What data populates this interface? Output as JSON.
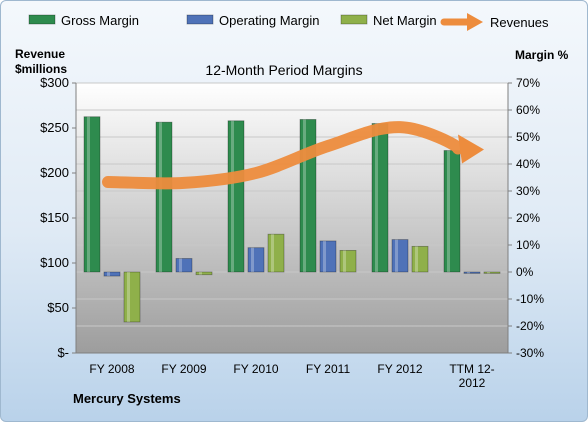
{
  "chart_data": {
    "type": "bar",
    "title": "12-Month Period Margins",
    "left_axis_title": [
      "Revenue",
      "$millions"
    ],
    "right_axis_title": "Margin %",
    "footer": "Mercury Systems",
    "categories": [
      "FY 2008",
      "FY 2009",
      "FY 2010",
      "FY 2011",
      "FY 2012",
      "TTM 12-2012"
    ],
    "category_labels": [
      [
        "FY 2008"
      ],
      [
        "FY 2009"
      ],
      [
        "FY 2010"
      ],
      [
        "FY 2011"
      ],
      [
        "FY 2012"
      ],
      [
        "TTM 12-",
        "2012"
      ]
    ],
    "series": [
      {
        "name": "Gross Margin",
        "axis": "right",
        "color": "#2e8b4e",
        "values": [
          57.5,
          55.5,
          56,
          56.5,
          55,
          45
        ]
      },
      {
        "name": "Operating Margin",
        "axis": "right",
        "color": "#4f72b8",
        "values": [
          -1.5,
          5,
          9,
          11.5,
          12,
          -0.5
        ]
      },
      {
        "name": "Net Margin",
        "axis": "right",
        "color": "#8fb04a",
        "values": [
          -18.5,
          -1,
          14,
          8,
          9.5,
          -0.5
        ]
      }
    ],
    "line_series": {
      "name": "Revenues",
      "axis": "left",
      "color": "#ed8c3d",
      "values": [
        190,
        189,
        200,
        230,
        251,
        225
      ]
    },
    "left_axis": {
      "min": 0,
      "max": 300,
      "step": 50,
      "tick_labels": [
        "$-",
        "$50",
        "$100",
        "$150",
        "$200",
        "$250",
        "$300"
      ]
    },
    "right_axis": {
      "min": -30,
      "max": 70,
      "step": 10,
      "tick_labels": [
        "-30%",
        "-20%",
        "-10%",
        "0%",
        "10%",
        "20%",
        "30%",
        "40%",
        "50%",
        "60%",
        "70%"
      ]
    },
    "legend_position": "top",
    "grid": true
  }
}
